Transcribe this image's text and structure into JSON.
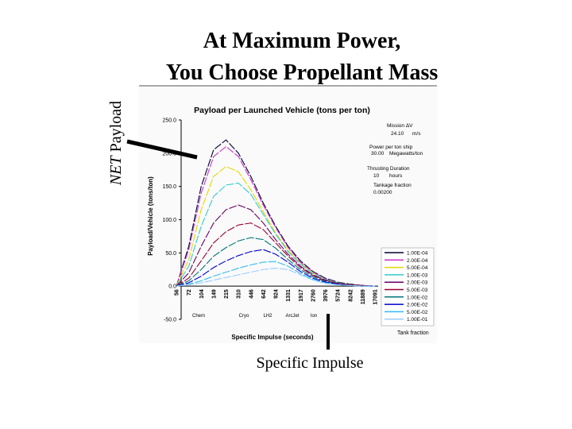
{
  "slide": {
    "title_lines": [
      "At Maximum Power,",
      "You Choose Propellant Mass"
    ],
    "side_label_emphasis": "NET",
    "side_label": "Payload",
    "callout": "Specific Impulse"
  },
  "chart_data": {
    "type": "line",
    "title": "Payload per Launched Vehicle (tons per ton)",
    "y_label": "Payload/Vehicle (tons/ton)",
    "x_label": "Specific Impulse (seconds)",
    "categories": [
      "56",
      "72",
      "104",
      "149",
      "215",
      "310",
      "446",
      "642",
      "924",
      "1331",
      "1917",
      "2760",
      "3976",
      "5724",
      "8242",
      "11889",
      "17091"
    ],
    "x_annotations": [
      "Chem",
      "Cryo",
      "LH2",
      "ArcJet",
      "Ion"
    ],
    "ylim": [
      -50,
      250
    ],
    "yticks": [
      {
        "value": 250,
        "label": "250.0"
      },
      {
        "value": 200,
        "label": "200.0"
      },
      {
        "value": 150,
        "label": "150.0"
      },
      {
        "value": 100,
        "label": "100.0"
      },
      {
        "value": 50,
        "label": "50.0"
      },
      {
        "value": 0,
        "label": "0.0"
      },
      {
        "value": -50,
        "label": "-50.0"
      }
    ],
    "annotations": [
      "Mission ΔV",
      "24.10",
      "m/s",
      "Power per ton ship",
      "30.00",
      "Megawatts/ton",
      "Thrusting Duration",
      "10",
      "hours",
      "Tankage fraction",
      "0.00200"
    ],
    "legend_title": "Tank fraction",
    "series": [
      {
        "name": "1.00E-04",
        "color": "#000033",
        "values": [
          0,
          60,
          150,
          205,
          220,
          200,
          165,
          125,
          90,
          60,
          38,
          22,
          12,
          6,
          3,
          1,
          0
        ]
      },
      {
        "name": "2.00E-04",
        "color": "#cc33cc",
        "values": [
          0,
          55,
          140,
          195,
          210,
          195,
          160,
          122,
          88,
          58,
          36,
          21,
          11,
          5,
          2,
          1,
          0
        ]
      },
      {
        "name": "5.00E-04",
        "color": "#e6d600",
        "values": [
          0,
          40,
          115,
          165,
          180,
          172,
          145,
          112,
          80,
          54,
          34,
          20,
          10,
          5,
          2,
          1,
          0
        ]
      },
      {
        "name": "1.00E-03",
        "color": "#33cccc",
        "values": [
          0,
          30,
          90,
          135,
          152,
          155,
          138,
          108,
          78,
          52,
          33,
          19,
          10,
          5,
          2,
          1,
          0
        ]
      },
      {
        "name": "2.00E-03",
        "color": "#660066",
        "values": [
          0,
          20,
          60,
          95,
          115,
          122,
          115,
          95,
          70,
          48,
          30,
          17,
          9,
          4,
          2,
          1,
          0
        ]
      },
      {
        "name": "5.00E-03",
        "color": "#990033",
        "values": [
          0,
          12,
          38,
          65,
          82,
          92,
          95,
          85,
          65,
          45,
          28,
          16,
          8,
          4,
          2,
          1,
          0
        ]
      },
      {
        "name": "1.00E-02",
        "color": "#007777",
        "values": [
          0,
          8,
          25,
          45,
          58,
          68,
          73,
          70,
          57,
          40,
          25,
          14,
          7,
          3,
          1,
          0,
          0
        ]
      },
      {
        "name": "2.00E-02",
        "color": "#0000cc",
        "values": [
          0,
          5,
          15,
          28,
          38,
          46,
          52,
          55,
          48,
          36,
          22,
          12,
          6,
          3,
          1,
          0,
          0
        ]
      },
      {
        "name": "5.00E-02",
        "color": "#33bbee",
        "values": [
          0,
          3,
          8,
          15,
          21,
          27,
          32,
          36,
          37,
          30,
          19,
          10,
          5,
          2,
          1,
          0,
          0
        ]
      },
      {
        "name": "1.00E-01",
        "color": "#99ccff",
        "values": [
          0,
          2,
          5,
          9,
          13,
          17,
          21,
          25,
          27,
          25,
          17,
          9,
          4,
          2,
          1,
          0,
          0
        ]
      }
    ]
  }
}
